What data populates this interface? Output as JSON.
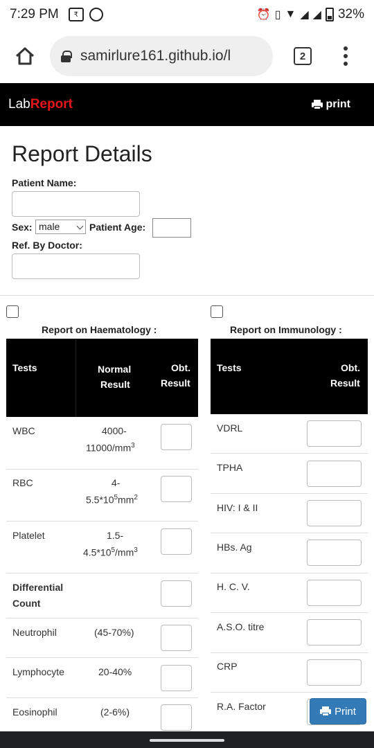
{
  "status_bar": {
    "time": "7:29 PM",
    "battery": "32%"
  },
  "browser": {
    "url": "samirlure161.github.io/l",
    "tab_count": "2"
  },
  "navbar": {
    "brand_part1": "Lab",
    "brand_part2": "Report",
    "print_label": "print"
  },
  "form": {
    "title": "Report Details",
    "patient_name_label": "Patient Name:",
    "patient_name_value": "",
    "sex_label": "Sex:",
    "sex_value": "male",
    "age_label": "Patient Age:",
    "age_value": "",
    "doctor_label": "Ref. By Doctor:",
    "doctor_value": ""
  },
  "haematology": {
    "title": "Report on Haematology :",
    "headers": {
      "tests": "Tests",
      "normal_1": "Normal",
      "normal_2": "Result",
      "obt_1": "Obt.",
      "obt_2": "Result"
    },
    "rows": [
      {
        "test": "WBC",
        "normal_a": "4000-",
        "normal_b": "11000/mm",
        "normal_sup": "3"
      },
      {
        "test": "RBC",
        "normal_a": "4-",
        "normal_b": "5.5*10",
        "normal_sup": "5",
        "normal_tail": "mm",
        "normal_sup2": "2"
      },
      {
        "test": "Platelet",
        "normal_a": "1.5-",
        "normal_b": "4.5*10",
        "normal_sup": "5",
        "normal_tail": "/mm",
        "normal_sup2": "3"
      },
      {
        "test_a": "Differential",
        "test_b": "Count"
      },
      {
        "test": "Neutrophil",
        "normal": "(45-70%)"
      },
      {
        "test": "Lymphocyte",
        "normal": "20-40%"
      },
      {
        "test": "Eosinophil",
        "normal": "(2-6%)"
      }
    ]
  },
  "immunology": {
    "title": "Report on Immunology :",
    "headers": {
      "tests": "Tests",
      "obt_1": "Obt.",
      "obt_2": "Result"
    },
    "rows": [
      "VDRL",
      "TPHA",
      "HIV: I & II",
      "HBs. Ag",
      "H. C. V.",
      "A.S.O. titre",
      "CRP",
      "R.A. Factor"
    ]
  },
  "print_button": {
    "label": "Print"
  }
}
